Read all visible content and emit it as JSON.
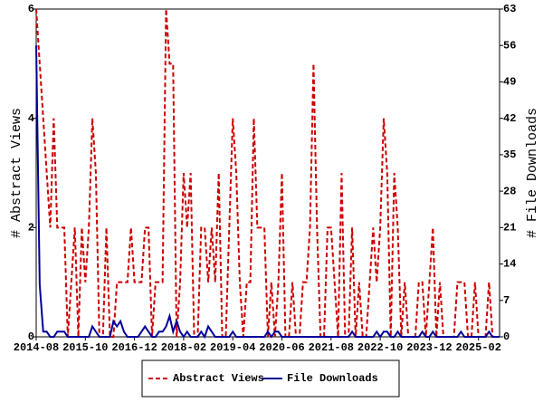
{
  "chart_data": {
    "type": "line",
    "ylabel": "# Abstract Views",
    "y2label": "# File Downloads",
    "categories": [
      "2014-08",
      null,
      null,
      null,
      null,
      null,
      null,
      null,
      null,
      null,
      null,
      null,
      null,
      null,
      "2015-10",
      null,
      null,
      null,
      null,
      null,
      null,
      null,
      null,
      null,
      null,
      null,
      null,
      null,
      "2016-12",
      null,
      null,
      null,
      null,
      null,
      null,
      null,
      null,
      null,
      null,
      null,
      null,
      null,
      "2018-02",
      null,
      null,
      null,
      null,
      null,
      null,
      null,
      null,
      null,
      null,
      null,
      null,
      null,
      "2019-04",
      null,
      null,
      null,
      null,
      null,
      null,
      null,
      null,
      null,
      null,
      null,
      null,
      null,
      "2020-06",
      null,
      null,
      null,
      null,
      null,
      null,
      null,
      null,
      null,
      null,
      null,
      null,
      null,
      "2021-08",
      null,
      null,
      null,
      null,
      null,
      null,
      null,
      null,
      null,
      null,
      null,
      null,
      null,
      "2022-10",
      null,
      null,
      null,
      null,
      null,
      null,
      null,
      null,
      null,
      null,
      null,
      null,
      null,
      "2023-12",
      null,
      null,
      null,
      null,
      null,
      null,
      null,
      null,
      null,
      null,
      null,
      null,
      null,
      "2025-02",
      null,
      null,
      null,
      null,
      null,
      null
    ],
    "series": [
      {
        "name": "Abstract Views",
        "color": "#cc0000",
        "dash": true,
        "values": [
          6,
          5,
          4,
          3,
          2,
          4,
          2,
          2,
          2,
          0,
          1,
          2,
          0,
          2,
          1,
          2,
          4,
          3,
          0,
          0,
          2,
          0,
          0,
          1,
          1,
          1,
          1,
          2,
          1,
          1,
          1,
          2,
          2,
          0,
          1,
          1,
          1,
          6,
          5,
          5,
          0,
          1,
          3,
          2,
          3,
          0,
          0,
          2,
          2,
          1,
          2,
          1,
          3,
          0,
          0,
          2,
          4,
          3,
          1,
          0,
          1,
          1,
          4,
          2,
          2,
          2,
          0,
          1,
          0,
          1,
          3,
          0,
          0,
          1,
          0,
          0,
          1,
          1,
          2,
          5,
          2,
          0,
          0,
          2,
          2,
          1,
          0,
          3,
          0,
          0,
          2,
          0,
          1,
          0,
          0,
          1,
          2,
          1,
          2,
          4,
          3,
          0,
          3,
          2,
          0,
          1,
          0,
          0,
          0,
          1,
          1,
          0,
          1,
          2,
          0,
          1,
          0,
          0,
          0,
          0,
          1,
          1,
          1,
          0,
          0,
          1,
          0,
          0,
          0,
          1,
          0,
          0,
          0
        ]
      },
      {
        "name": "File Downloads",
        "color": "#000099",
        "dash": false,
        "axis": "y2",
        "values": [
          56,
          10,
          1,
          1,
          0,
          0,
          1,
          1,
          1,
          0,
          0,
          0,
          0,
          0,
          0,
          0,
          2,
          1,
          0,
          0,
          0,
          0,
          3,
          2,
          3,
          1,
          0,
          0,
          0,
          0,
          1,
          2,
          1,
          0,
          0,
          1,
          1,
          2,
          4,
          1,
          3,
          1,
          0,
          1,
          0,
          0,
          0,
          1,
          0,
          2,
          1,
          0,
          0,
          0,
          0,
          0,
          1,
          0,
          0,
          0,
          0,
          0,
          0,
          0,
          0,
          0,
          1,
          0,
          1,
          1,
          0,
          0,
          0,
          0,
          0,
          0,
          0,
          0,
          0,
          0,
          0,
          0,
          0,
          0,
          0,
          0,
          0,
          0,
          0,
          0,
          1,
          0,
          0,
          0,
          0,
          0,
          0,
          1,
          0,
          1,
          1,
          0,
          0,
          1,
          0,
          0,
          0,
          0,
          0,
          0,
          1,
          0,
          0,
          1,
          0,
          0,
          0,
          0,
          0,
          0,
          0,
          1,
          0,
          0,
          0,
          0,
          0,
          0,
          0,
          1,
          0,
          0,
          0
        ]
      }
    ],
    "ylim": [
      0,
      6
    ],
    "yticks": [
      0,
      2,
      4,
      6
    ],
    "y2lim": [
      0,
      63
    ],
    "y2ticks": [
      0,
      7,
      14,
      21,
      28,
      35,
      42,
      49,
      56,
      63
    ]
  }
}
